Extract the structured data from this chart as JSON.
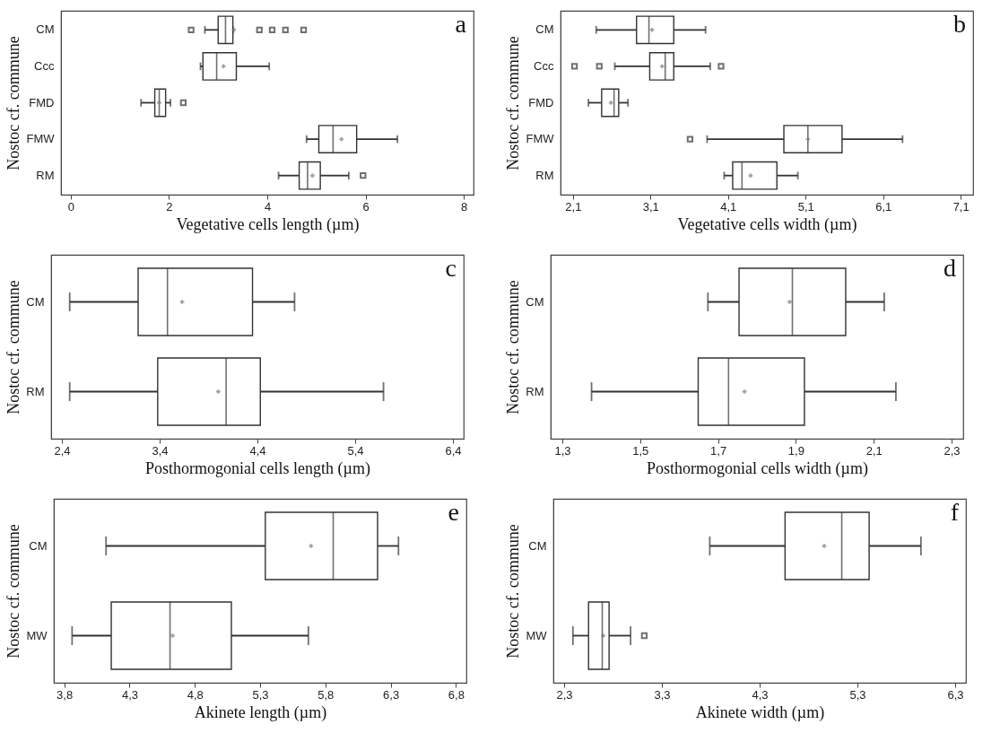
{
  "chart_data": [
    {
      "type": "box",
      "orientation": "horizontal",
      "categories": [
        "CM",
        "Ccc",
        "FMD",
        "FMW",
        "RM"
      ],
      "xlabel": "Vegetative cells length (µm)",
      "ylabel": "Nostoc cf. commune",
      "annotations": [
        "a"
      ],
      "xlim": [
        -0.2,
        8.2
      ],
      "xticks": [
        0,
        2,
        4,
        6,
        8
      ],
      "boxes": [
        {
          "low": 2.73,
          "q1": 3.0,
          "median": 3.15,
          "q3": 3.3,
          "high": 3.3,
          "mean": 3.32,
          "outliers": [
            2.45,
            3.84,
            4.1,
            4.37,
            4.74
          ]
        },
        {
          "low": 2.64,
          "q1": 2.69,
          "median": 2.97,
          "q3": 3.37,
          "high": 4.04,
          "mean": 3.11
        },
        {
          "low": 1.43,
          "q1": 1.71,
          "median": 1.8,
          "q3": 1.93,
          "high": 2.03,
          "mean": 1.8,
          "outliers": [
            2.29
          ]
        },
        {
          "low": 4.8,
          "q1": 5.05,
          "median": 5.34,
          "q3": 5.82,
          "high": 6.65,
          "mean": 5.51
        },
        {
          "low": 4.23,
          "q1": 4.65,
          "median": 4.82,
          "q3": 5.08,
          "high": 5.66,
          "mean": 4.92,
          "outliers": [
            5.95
          ]
        }
      ]
    },
    {
      "type": "box",
      "orientation": "horizontal",
      "categories": [
        "CM",
        "Ccc",
        "FMD",
        "FMW",
        "RM"
      ],
      "xlabel": "Vegetative cells width (µm)",
      "ylabel": "Nostoc cf. commune",
      "annotations": [
        "b"
      ],
      "xlim": [
        1.94,
        7.26
      ],
      "xticks": [
        {
          "value": 2.1,
          "label": "2,1"
        },
        {
          "value": 3.1,
          "label": "3,1"
        },
        {
          "value": 4.1,
          "label": "4,1"
        },
        {
          "value": 5.1,
          "label": "5,1"
        },
        {
          "value": 6.1,
          "label": "6,1"
        },
        {
          "value": 7.1,
          "label": "7,1"
        }
      ],
      "boxes": [
        {
          "low": 2.4,
          "q1": 2.92,
          "median": 3.08,
          "q3": 3.4,
          "high": 3.81,
          "mean": 3.12
        },
        {
          "low": 2.64,
          "q1": 3.09,
          "median": 3.29,
          "q3": 3.4,
          "high": 3.87,
          "mean": 3.25,
          "outliers": [
            2.12,
            2.44,
            4.01
          ]
        },
        {
          "low": 2.3,
          "q1": 2.47,
          "median": 2.63,
          "q3": 2.69,
          "high": 2.81,
          "mean": 2.59
        },
        {
          "low": 3.83,
          "q1": 4.82,
          "median": 5.13,
          "q3": 5.57,
          "high": 6.35,
          "mean": 5.13,
          "outliers": [
            3.61
          ]
        },
        {
          "low": 4.05,
          "q1": 4.16,
          "median": 4.28,
          "q3": 4.73,
          "high": 5.0,
          "mean": 4.39
        }
      ]
    },
    {
      "type": "box",
      "orientation": "horizontal",
      "categories": [
        "CM",
        "RM"
      ],
      "xlabel": "Posthormogonial cells length (µm)",
      "ylabel": "Nostoc cf. commune",
      "annotations": [
        "c"
      ],
      "xlim": [
        2.29,
        6.51
      ],
      "xticks": [
        {
          "value": 2.4,
          "label": "2,4"
        },
        {
          "value": 3.4,
          "label": "3,4"
        },
        {
          "value": 4.4,
          "label": "4,4"
        },
        {
          "value": 5.4,
          "label": "5,4"
        },
        {
          "value": 6.4,
          "label": "6,4"
        }
      ],
      "boxes": [
        {
          "low": 2.48,
          "q1": 3.18,
          "median": 3.48,
          "q3": 4.35,
          "high": 4.78,
          "mean": 3.63
        },
        {
          "low": 2.48,
          "q1": 3.38,
          "median": 4.08,
          "q3": 4.43,
          "high": 5.69,
          "mean": 4.0
        }
      ]
    },
    {
      "type": "box",
      "orientation": "horizontal",
      "categories": [
        "CM",
        "RM"
      ],
      "xlabel": "Posthormogonial cells width (µm)",
      "ylabel": "Nostoc cf. commune",
      "annotations": [
        "d"
      ],
      "xlim": [
        1.27,
        2.33
      ],
      "xticks": [
        {
          "value": 1.3,
          "label": "1,3"
        },
        {
          "value": 1.5,
          "label": "1,5"
        },
        {
          "value": 1.7,
          "label": "1,7"
        },
        {
          "value": 1.9,
          "label": "1,9"
        },
        {
          "value": 2.1,
          "label": "2,1"
        },
        {
          "value": 2.3,
          "label": "2,3"
        }
      ],
      "boxes": [
        {
          "low": 1.674,
          "q1": 1.754,
          "median": 1.891,
          "q3": 2.028,
          "high": 2.127,
          "mean": 1.884
        },
        {
          "low": 1.375,
          "q1": 1.649,
          "median": 1.727,
          "q3": 1.922,
          "high": 2.157,
          "mean": 1.768
        }
      ]
    },
    {
      "type": "box",
      "orientation": "horizontal",
      "categories": [
        "CM",
        "MW"
      ],
      "xlabel": "Akinete length (µm)",
      "ylabel": "Nostoc cf. commune",
      "annotations": [
        "e"
      ],
      "xlim": [
        3.72,
        6.88
      ],
      "xticks": [
        {
          "value": 3.8,
          "label": "3,8"
        },
        {
          "value": 4.3,
          "label": "4,3"
        },
        {
          "value": 4.8,
          "label": "4,8"
        },
        {
          "value": 5.3,
          "label": "5,3"
        },
        {
          "value": 5.8,
          "label": "5,8"
        },
        {
          "value": 6.3,
          "label": "6,3"
        },
        {
          "value": 6.8,
          "label": "6,8"
        }
      ],
      "boxes": [
        {
          "low": 4.12,
          "q1": 5.34,
          "median": 5.86,
          "q3": 6.2,
          "high": 6.36,
          "mean": 5.69
        },
        {
          "low": 3.86,
          "q1": 4.16,
          "median": 4.61,
          "q3": 5.08,
          "high": 5.67,
          "mean": 4.63
        }
      ]
    },
    {
      "type": "box",
      "orientation": "horizontal",
      "categories": [
        "CM",
        "MW"
      ],
      "xlabel": "Akinete width (µm)",
      "ylabel": "Nostoc cf. commune",
      "annotations": [
        "f"
      ],
      "xlim": [
        2.19,
        6.41
      ],
      "xticks": [
        {
          "value": 2.3,
          "label": "2,3"
        },
        {
          "value": 3.3,
          "label": "3,3"
        },
        {
          "value": 4.3,
          "label": "4,3"
        },
        {
          "value": 5.3,
          "label": "5,3"
        },
        {
          "value": 6.3,
          "label": "6,3"
        }
      ],
      "boxes": [
        {
          "low": 3.79,
          "q1": 4.56,
          "median": 5.14,
          "q3": 5.42,
          "high": 5.95,
          "mean": 4.96
        },
        {
          "low": 2.39,
          "q1": 2.55,
          "median": 2.69,
          "q3": 2.76,
          "high": 2.98,
          "mean": 2.7,
          "outliers": [
            3.12
          ]
        }
      ]
    }
  ]
}
